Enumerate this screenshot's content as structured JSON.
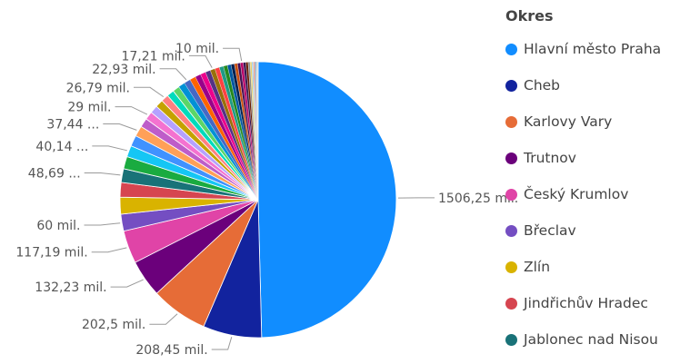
{
  "chart_data": {
    "type": "pie",
    "legend": {
      "title": "Okres",
      "placement": "right"
    },
    "slices": [
      {
        "label": "Hlavní město Praha",
        "value": 1506.25,
        "display": "1506,25 mil.",
        "color": "#118DFF"
      },
      {
        "label": "Cheb",
        "value": 208.45,
        "display": "208,45 mil.",
        "color": "#12239E"
      },
      {
        "label": "Karlovy Vary",
        "value": 202.5,
        "display": "202,5 mil.",
        "color": "#E66C37"
      },
      {
        "label": "Trutnov",
        "value": 132.23,
        "display": "132,23 mil.",
        "color": "#6B007B"
      },
      {
        "label": "Český Krumlov",
        "value": 117.19,
        "display": "117,19 mil.",
        "color": "#E044A7"
      },
      {
        "label": "Břeclav",
        "value": 60,
        "display": "60 mil.",
        "color": "#744EC2"
      },
      {
        "label": "Zlín",
        "value": 60,
        "display": "",
        "color": "#D9B300"
      },
      {
        "label": "Jindřichův Hradec",
        "value": 52,
        "display": "",
        "color": "#D64550"
      },
      {
        "label": "Jablonec nad Nisou",
        "value": 48.69,
        "display": "48,69 ...",
        "color": "#197278"
      },
      {
        "label": "",
        "value": 44,
        "display": "",
        "color": "#1AAB40"
      },
      {
        "label": "",
        "value": 40.14,
        "display": "40,14 ...",
        "color": "#15C6F4"
      },
      {
        "label": "",
        "value": 39,
        "display": "",
        "color": "#4092FF"
      },
      {
        "label": "",
        "value": 37.44,
        "display": "37,44 ...",
        "color": "#FFA058"
      },
      {
        "label": "",
        "value": 32,
        "display": "",
        "color": "#BE5DC9"
      },
      {
        "label": "",
        "value": 29,
        "display": "29 mil.",
        "color": "#F472D0"
      },
      {
        "label": "",
        "value": 28,
        "display": "",
        "color": "#B5A1FF"
      },
      {
        "label": "",
        "value": 27.5,
        "display": "",
        "color": "#C4A200"
      },
      {
        "label": "",
        "value": 26.79,
        "display": "26,79 mil.",
        "color": "#FF8080"
      },
      {
        "label": "",
        "value": 25.5,
        "display": "",
        "color": "#00DBBC"
      },
      {
        "label": "",
        "value": 24.5,
        "display": "",
        "color": "#5BD667"
      },
      {
        "label": "",
        "value": 23.5,
        "display": "",
        "color": "#0091D5"
      },
      {
        "label": "",
        "value": 22.93,
        "display": "22,93 mil.",
        "color": "#4668C5"
      },
      {
        "label": "",
        "value": 21,
        "display": "",
        "color": "#FF6300"
      },
      {
        "label": "",
        "value": 20,
        "display": "",
        "color": "#99008A"
      },
      {
        "label": "",
        "value": 19,
        "display": "",
        "color": "#EC008C"
      },
      {
        "label": "",
        "value": 18,
        "display": "",
        "color": "#533285"
      },
      {
        "label": "",
        "value": 17.21,
        "display": "17,21 mil.",
        "color": "#99700A"
      },
      {
        "label": "",
        "value": 16,
        "display": "",
        "color": "#FF4141"
      },
      {
        "label": "",
        "value": 15,
        "display": "",
        "color": "#1F9A85"
      },
      {
        "label": "",
        "value": 14,
        "display": "",
        "color": "#25891C"
      },
      {
        "label": "",
        "value": 13,
        "display": "",
        "color": "#0057A2"
      },
      {
        "label": "",
        "value": 12,
        "display": "",
        "color": "#002050"
      },
      {
        "label": "",
        "value": 11,
        "display": "",
        "color": "#C94F0F"
      },
      {
        "label": "",
        "value": 10.5,
        "display": "",
        "color": "#450F54"
      },
      {
        "label": "",
        "value": 10,
        "display": "10 mil.",
        "color": "#B60064"
      },
      {
        "label": "",
        "value": 9,
        "display": "",
        "color": "#34124F"
      },
      {
        "label": "",
        "value": 8,
        "display": "",
        "color": "#6A1C00"
      },
      {
        "label": "",
        "value": 7,
        "display": "",
        "color": "#8C8C8C"
      },
      {
        "label": "",
        "value": 6,
        "display": "",
        "color": "#E8D166"
      },
      {
        "label": "",
        "value": 5,
        "display": "",
        "color": "#94C8F0"
      },
      {
        "label": "",
        "value": 4,
        "display": "",
        "color": "#F0A06C"
      },
      {
        "label": "",
        "value": 3.5,
        "display": "",
        "color": "#A66999"
      },
      {
        "label": "",
        "value": 3,
        "display": "",
        "color": "#3599B8"
      },
      {
        "label": "",
        "value": 2.5,
        "display": "",
        "color": "#DFBFBF"
      },
      {
        "label": "",
        "value": 2,
        "display": "",
        "color": "#4AC5BB"
      },
      {
        "label": "",
        "value": 1.5,
        "display": "",
        "color": "#5F6B6D"
      },
      {
        "label": "",
        "value": 1,
        "display": "",
        "color": "#FB8281"
      }
    ]
  }
}
